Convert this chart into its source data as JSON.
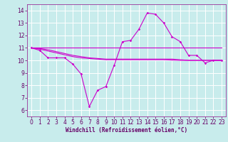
{
  "xlabel": "Windchill (Refroidissement éolien,°C)",
  "bg_color": "#c8ecec",
  "grid_color": "#ffffff",
  "line_color": "#cc00cc",
  "xlim": [
    -0.5,
    23.5
  ],
  "ylim": [
    5.5,
    14.5
  ],
  "xticks": [
    0,
    1,
    2,
    3,
    4,
    5,
    6,
    7,
    8,
    9,
    10,
    11,
    12,
    13,
    14,
    15,
    16,
    17,
    18,
    19,
    20,
    21,
    22,
    23
  ],
  "yticks": [
    6,
    7,
    8,
    9,
    10,
    11,
    12,
    13,
    14
  ],
  "curve1_x": [
    0,
    1,
    2,
    3,
    4,
    5,
    6,
    7,
    8,
    9,
    10,
    11,
    12,
    13,
    14,
    15,
    16,
    17,
    18,
    19,
    20,
    21,
    22,
    23
  ],
  "curve1_y": [
    11.0,
    10.8,
    10.2,
    10.2,
    10.2,
    9.7,
    8.9,
    6.3,
    7.6,
    7.9,
    9.6,
    11.5,
    11.6,
    12.5,
    13.8,
    13.7,
    13.0,
    11.9,
    11.5,
    10.4,
    10.4,
    9.8,
    10.0,
    10.0
  ],
  "curve2_x": [
    0,
    23
  ],
  "curve2_y": [
    11.0,
    11.0
  ],
  "curve3_x": [
    0,
    1,
    2,
    3,
    4,
    5,
    6,
    7,
    8,
    9,
    10,
    11,
    12,
    13,
    14,
    15,
    16,
    17,
    18,
    19,
    20,
    21,
    22,
    23
  ],
  "curve3_y": [
    11.0,
    10.95,
    10.85,
    10.7,
    10.55,
    10.4,
    10.3,
    10.2,
    10.15,
    10.1,
    10.1,
    10.1,
    10.1,
    10.1,
    10.1,
    10.1,
    10.1,
    10.1,
    10.05,
    10.0,
    10.0,
    10.0,
    10.0,
    10.0
  ],
  "curve4_x": [
    0,
    1,
    2,
    3,
    4,
    5,
    6,
    7,
    8,
    9,
    10,
    11,
    12,
    13,
    14,
    15,
    16,
    17,
    18,
    19,
    20,
    21,
    22,
    23
  ],
  "curve4_y": [
    11.0,
    10.9,
    10.75,
    10.6,
    10.45,
    10.3,
    10.2,
    10.15,
    10.1,
    10.05,
    10.05,
    10.05,
    10.05,
    10.05,
    10.05,
    10.05,
    10.05,
    10.02,
    10.0,
    10.0,
    10.0,
    10.0,
    10.0,
    10.0
  ],
  "lw": 0.8,
  "ms": 1.8,
  "tick_fontsize": 5.5,
  "xlabel_fontsize": 5.5
}
